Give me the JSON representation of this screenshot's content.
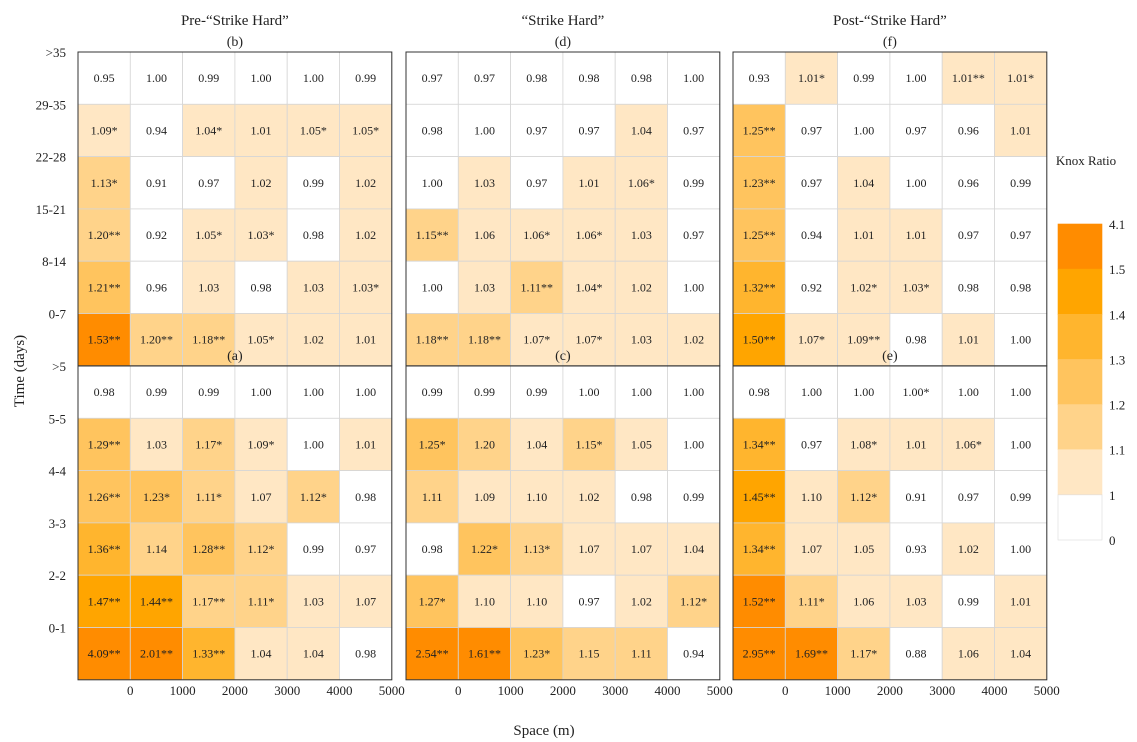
{
  "chart_data": {
    "type": "heatmap",
    "ylabel": "Time (days)",
    "xlabel": "Space (m)",
    "x_ticks": [
      "0",
      "1000",
      "2000",
      "3000",
      "4000",
      "5000"
    ],
    "y_ticks_top": [
      ">35",
      "29-35",
      "22-28",
      "15-21",
      "8-14",
      "0-7"
    ],
    "y_ticks_bottom": [
      ">5",
      "5-5",
      "4-4",
      "3-3",
      "2-2",
      "0-1"
    ],
    "column_titles": [
      "Pre-“Strike Hard”",
      "“Strike Hard”",
      "Post-“Strike Hard”"
    ],
    "legend": {
      "title": "Knox Ratio",
      "ticks": [
        "4.1",
        "1.5",
        "1.4",
        "1.3",
        "1.2",
        "1.1",
        "1",
        "0"
      ],
      "bins": [
        {
          "min": 1.5,
          "max": 4.1,
          "color": "#FF8C00"
        },
        {
          "min": 1.4,
          "max": 1.5,
          "color": "#FFA500"
        },
        {
          "min": 1.3,
          "max": 1.4,
          "color": "#FFB52E"
        },
        {
          "min": 1.2,
          "max": 1.3,
          "color": "#FFC45E"
        },
        {
          "min": 1.1,
          "max": 1.2,
          "color": "#FFD38A"
        },
        {
          "min": 1.0,
          "max": 1.1,
          "color": "#FFE7C4"
        },
        {
          "min": 0.0,
          "max": 1.0,
          "color": "#FFFFFF"
        }
      ]
    },
    "panels": [
      {
        "label": "(b)",
        "row": 0,
        "col": 0,
        "cells": [
          [
            "0.95",
            "1.00",
            "0.99",
            "1.00",
            "1.00",
            "0.99"
          ],
          [
            "1.09*",
            "0.94",
            "1.04*",
            "1.01",
            "1.05*",
            "1.05*"
          ],
          [
            "1.13*",
            "0.91",
            "0.97",
            "1.02",
            "0.99",
            "1.02"
          ],
          [
            "1.20**",
            "0.92",
            "1.05*",
            "1.03*",
            "0.98",
            "1.02"
          ],
          [
            "1.21**",
            "0.96",
            "1.03",
            "0.98",
            "1.03",
            "1.03*"
          ],
          [
            "1.53**",
            "1.20**",
            "1.18**",
            "1.05*",
            "1.02",
            "1.01"
          ]
        ]
      },
      {
        "label": "(d)",
        "row": 0,
        "col": 1,
        "cells": [
          [
            "0.97",
            "0.97",
            "0.98",
            "0.98",
            "0.98",
            "1.00"
          ],
          [
            "0.98",
            "1.00",
            "0.97",
            "0.97",
            "1.04",
            "0.97"
          ],
          [
            "1.00",
            "1.03",
            "0.97",
            "1.01",
            "1.06*",
            "0.99"
          ],
          [
            "1.15**",
            "1.06",
            "1.06*",
            "1.06*",
            "1.03",
            "0.97"
          ],
          [
            "1.00",
            "1.03",
            "1.11**",
            "1.04*",
            "1.02",
            "1.00"
          ],
          [
            "1.18**",
            "1.18**",
            "1.07*",
            "1.07*",
            "1.03",
            "1.02"
          ]
        ]
      },
      {
        "label": "(f)",
        "row": 0,
        "col": 2,
        "cells": [
          [
            "0.93",
            "1.01*",
            "0.99",
            "1.00",
            "1.01**",
            "1.01*"
          ],
          [
            "1.25**",
            "0.97",
            "1.00",
            "0.97",
            "0.96",
            "1.01"
          ],
          [
            "1.23**",
            "0.97",
            "1.04",
            "1.00",
            "0.96",
            "0.99"
          ],
          [
            "1.25**",
            "0.94",
            "1.01",
            "1.01",
            "0.97",
            "0.97"
          ],
          [
            "1.32**",
            "0.92",
            "1.02*",
            "1.03*",
            "0.98",
            "0.98"
          ],
          [
            "1.50**",
            "1.07*",
            "1.09**",
            "0.98",
            "1.01",
            "1.00"
          ]
        ]
      },
      {
        "label": "(a)",
        "row": 1,
        "col": 0,
        "cells": [
          [
            "0.98",
            "0.99",
            "0.99",
            "1.00",
            "1.00",
            "1.00"
          ],
          [
            "1.29**",
            "1.03",
            "1.17*",
            "1.09*",
            "1.00",
            "1.01"
          ],
          [
            "1.26**",
            "1.23*",
            "1.11*",
            "1.07",
            "1.12*",
            "0.98"
          ],
          [
            "1.36**",
            "1.14",
            "1.28**",
            "1.12*",
            "0.99",
            "0.97"
          ],
          [
            "1.47**",
            "1.44**",
            "1.17**",
            "1.11*",
            "1.03",
            "1.07"
          ],
          [
            "4.09**",
            "2.01**",
            "1.33**",
            "1.04",
            "1.04",
            "0.98"
          ]
        ]
      },
      {
        "label": "(c)",
        "row": 1,
        "col": 1,
        "cells": [
          [
            "0.99",
            "0.99",
            "0.99",
            "1.00",
            "1.00",
            "1.00"
          ],
          [
            "1.25*",
            "1.20",
            "1.04",
            "1.15*",
            "1.05",
            "1.00"
          ],
          [
            "1.11",
            "1.09",
            "1.10",
            "1.02",
            "0.98",
            "0.99"
          ],
          [
            "0.98",
            "1.22*",
            "1.13*",
            "1.07",
            "1.07",
            "1.04"
          ],
          [
            "1.27*",
            "1.10",
            "1.10",
            "0.97",
            "1.02",
            "1.12*"
          ],
          [
            "2.54**",
            "1.61**",
            "1.23*",
            "1.15",
            "1.11",
            "0.94"
          ]
        ]
      },
      {
        "label": "(e)",
        "row": 1,
        "col": 2,
        "cells": [
          [
            "0.98",
            "1.00",
            "1.00",
            "1.00*",
            "1.00",
            "1.00"
          ],
          [
            "1.34**",
            "0.97",
            "1.08*",
            "1.01",
            "1.06*",
            "1.00"
          ],
          [
            "1.45**",
            "1.10",
            "1.12*",
            "0.91",
            "0.97",
            "0.99"
          ],
          [
            "1.34**",
            "1.07",
            "1.05",
            "0.93",
            "1.02",
            "1.00"
          ],
          [
            "1.52**",
            "1.11*",
            "1.06",
            "1.03",
            "0.99",
            "1.01"
          ],
          [
            "2.95**",
            "1.69**",
            "1.17*",
            "0.88",
            "1.06",
            "1.04"
          ]
        ]
      }
    ]
  }
}
